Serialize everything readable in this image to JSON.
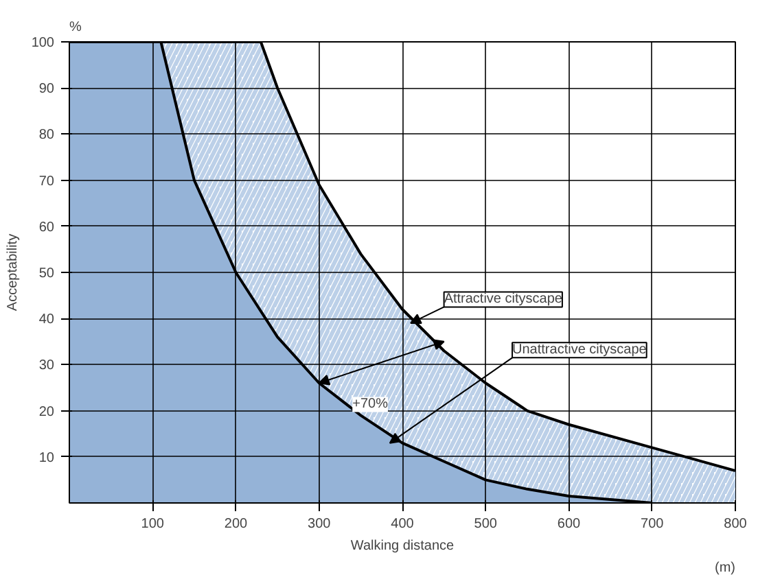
{
  "chart_data": {
    "type": "area",
    "xlabel": "Walking distance",
    "ylabel": "Acceptability",
    "annotations": [
      {
        "text": "Attractive cityscape",
        "x": 410,
        "y": 39
      },
      {
        "text": "Unattractive cityscape",
        "x": 385,
        "y": 13
      },
      {
        "text": "+70%",
        "x": 300,
        "y": 26
      },
      "%",
      "(m)"
    ],
    "series": [
      {
        "color": "#bcd0e8",
        "x": [
          0,
          230,
          250,
          300,
          350,
          400,
          450,
          500,
          550,
          600,
          700,
          800
        ],
        "values": [
          100,
          100,
          90,
          69,
          54,
          42,
          33,
          26,
          20,
          17,
          12,
          7
        ]
      },
      {
        "color": "#95b3d7",
        "x": [
          0,
          110,
          150,
          200,
          250,
          300,
          350,
          400,
          450,
          500,
          550,
          600,
          700
        ],
        "values": [
          100,
          100,
          70,
          50,
          36,
          26,
          19,
          13,
          9,
          5,
          3,
          1.5,
          0
        ]
      }
    ],
    "xlim": [
      0,
      800
    ],
    "ylim": [
      0,
      100
    ],
    "xticks": [
      100,
      200,
      300,
      400,
      500,
      600,
      700,
      800
    ],
    "yticks": [
      10,
      20,
      30,
      40,
      50,
      60,
      70,
      80,
      90,
      100
    ],
    "grid": true
  }
}
